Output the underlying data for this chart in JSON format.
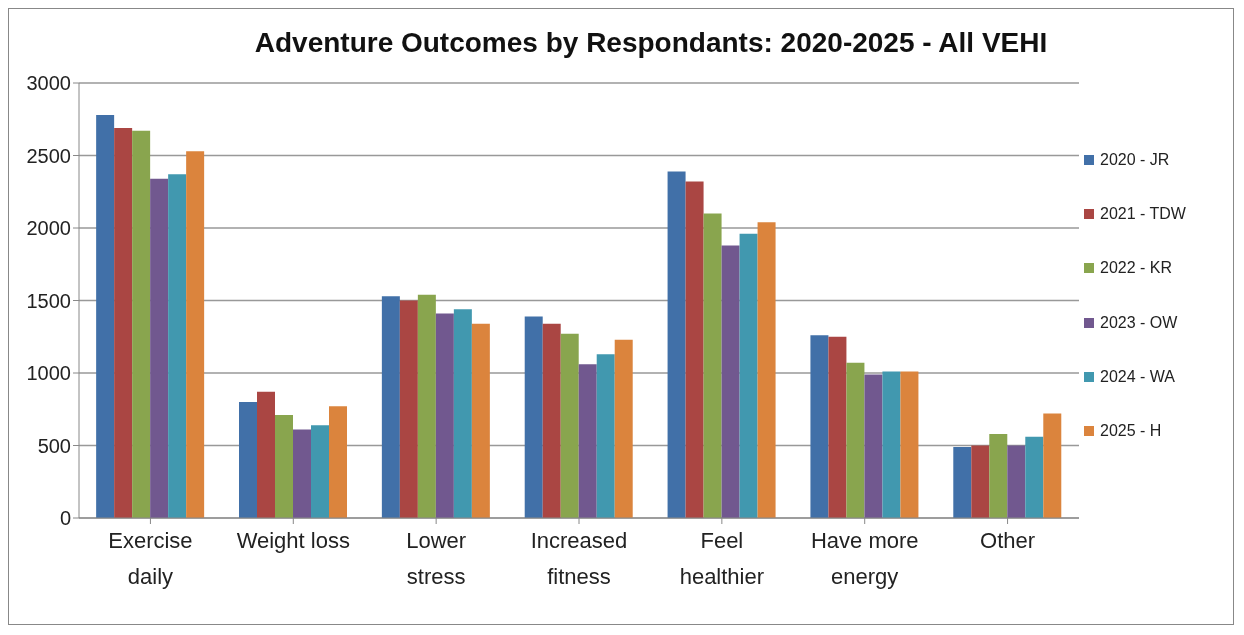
{
  "chart_data": {
    "type": "bar",
    "title": "Adventure Outcomes by Respondants: 2020-2025 - All VEHI",
    "categories": [
      "Exercise daily",
      "Weight loss",
      "Lower stress",
      "Increased fitness",
      "Feel healthier",
      "Have more energy",
      "Other"
    ],
    "series": [
      {
        "name": "2020 - JR",
        "color": "#4170a8",
        "values": [
          2780,
          800,
          1530,
          1390,
          2390,
          1260,
          490
        ]
      },
      {
        "name": "2021 - TDW",
        "color": "#aa4643",
        "values": [
          2690,
          870,
          1500,
          1340,
          2320,
          1250,
          500
        ]
      },
      {
        "name": "2022 - KR",
        "color": "#89a54e",
        "values": [
          2670,
          710,
          1540,
          1270,
          2100,
          1070,
          580
        ]
      },
      {
        "name": "2023 - OW",
        "color": "#71588f",
        "values": [
          2340,
          610,
          1410,
          1060,
          1880,
          990,
          500
        ]
      },
      {
        "name": "2024 - WA",
        "color": "#4198af",
        "values": [
          2370,
          640,
          1440,
          1130,
          1960,
          1010,
          560
        ]
      },
      {
        "name": "2025 - H",
        "color": "#db843d",
        "values": [
          2530,
          770,
          1340,
          1230,
          2040,
          1010,
          720
        ]
      }
    ],
    "ylim": [
      0,
      3000
    ],
    "yticks": [
      0,
      500,
      1000,
      1500,
      2000,
      2500,
      3000
    ],
    "grid": "y",
    "legend": "right"
  }
}
